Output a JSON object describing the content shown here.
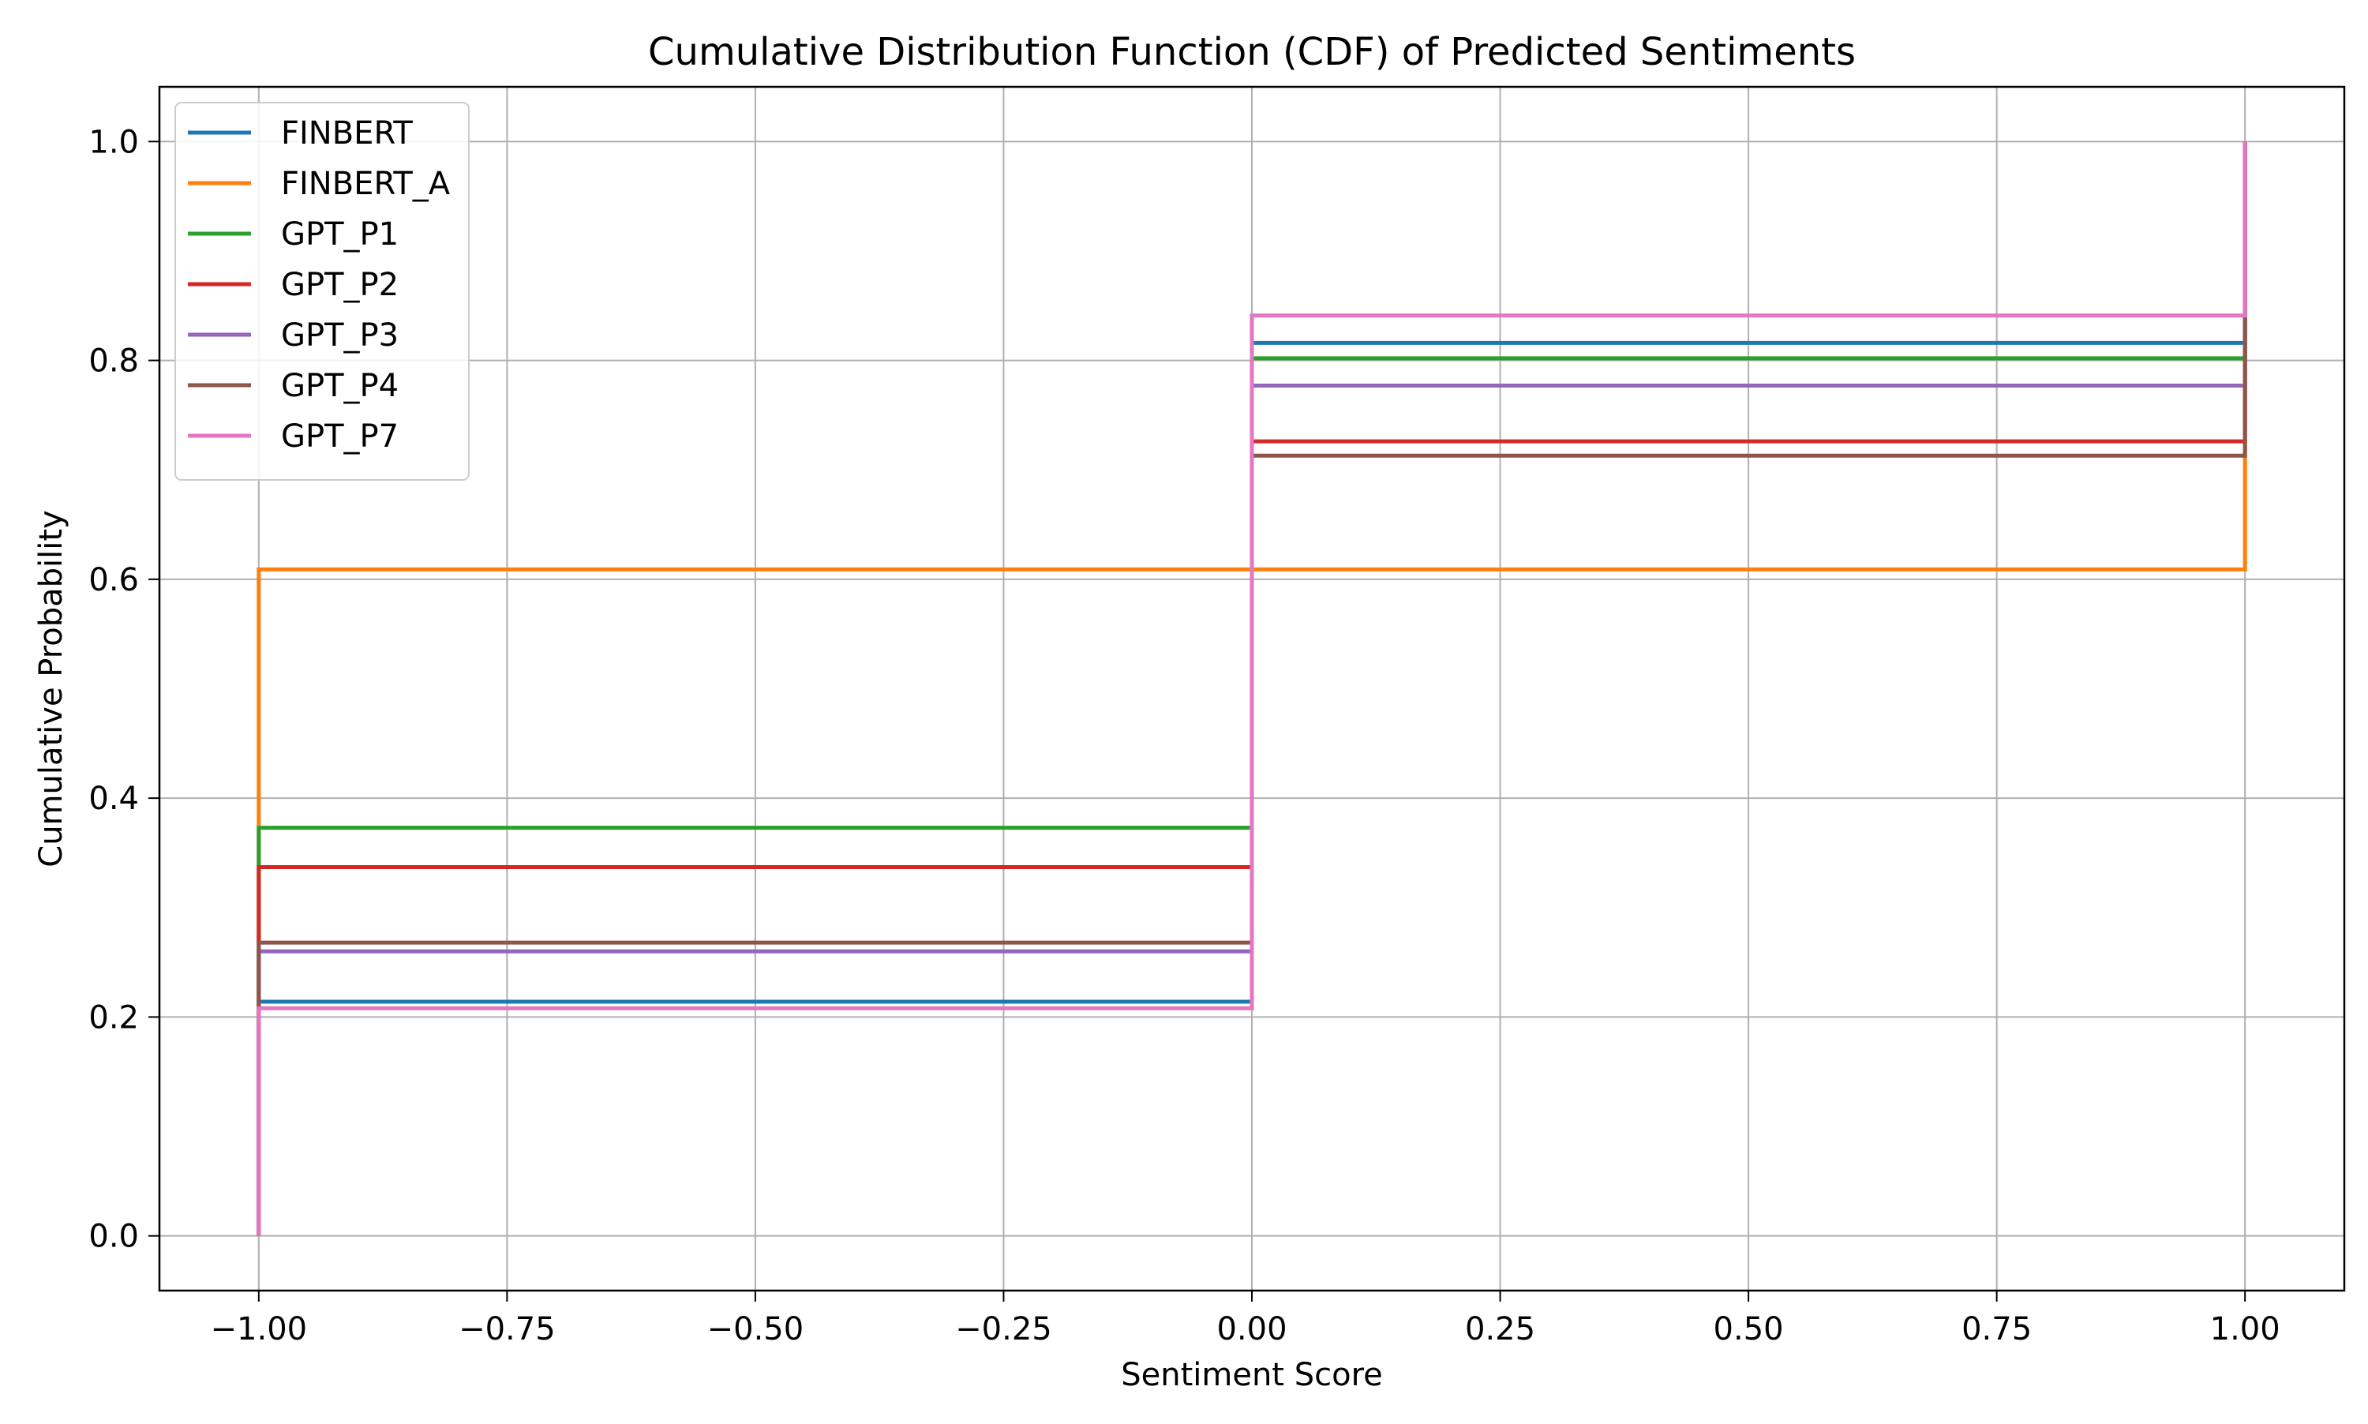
{
  "chart_data": {
    "type": "line",
    "step": true,
    "title": "Cumulative Distribution Function (CDF) of Predicted Sentiments",
    "xlabel": "Sentiment Score",
    "ylabel": "Cumulative Probability",
    "xlim": [
      -1.1,
      1.1
    ],
    "ylim": [
      -0.05,
      1.05
    ],
    "xticks": [
      -1.0,
      -0.75,
      -0.5,
      -0.25,
      0.0,
      0.25,
      0.5,
      0.75,
      1.0
    ],
    "xtick_labels": [
      "−1.00",
      "−0.75",
      "−0.50",
      "−0.25",
      "0.00",
      "0.25",
      "0.50",
      "0.75",
      "1.00"
    ],
    "yticks": [
      0.0,
      0.2,
      0.4,
      0.6,
      0.8,
      1.0
    ],
    "ytick_labels": [
      "0.0",
      "0.2",
      "0.4",
      "0.6",
      "0.8",
      "1.0"
    ],
    "grid": true,
    "legend_position": "top-left",
    "series": [
      {
        "name": "FINBERT",
        "color": "#1f77b4",
        "x": [
          -1.0,
          0.0,
          1.0
        ],
        "y": [
          0.214,
          0.816,
          1.0
        ]
      },
      {
        "name": "FINBERT_A",
        "color": "#ff7f0e",
        "x": [
          -1.0,
          0.0,
          1.0
        ],
        "y": [
          0.609,
          0.609,
          1.0
        ]
      },
      {
        "name": "GPT_P1",
        "color": "#2ca02c",
        "x": [
          -1.0,
          0.0,
          1.0
        ],
        "y": [
          0.373,
          0.802,
          1.0
        ]
      },
      {
        "name": "GPT_P2",
        "color": "#d62728",
        "x": [
          -1.0,
          0.0,
          1.0
        ],
        "y": [
          0.337,
          0.726,
          1.0
        ]
      },
      {
        "name": "GPT_P3",
        "color": "#9467bd",
        "x": [
          -1.0,
          0.0,
          1.0
        ],
        "y": [
          0.26,
          0.777,
          1.0
        ]
      },
      {
        "name": "GPT_P4",
        "color": "#8c564b",
        "x": [
          -1.0,
          0.0,
          1.0
        ],
        "y": [
          0.268,
          0.713,
          1.0
        ]
      },
      {
        "name": "GPT_P7",
        "color": "#e377c2",
        "x": [
          -1.0,
          0.0,
          1.0
        ],
        "y": [
          0.208,
          0.841,
          1.0
        ]
      }
    ]
  }
}
